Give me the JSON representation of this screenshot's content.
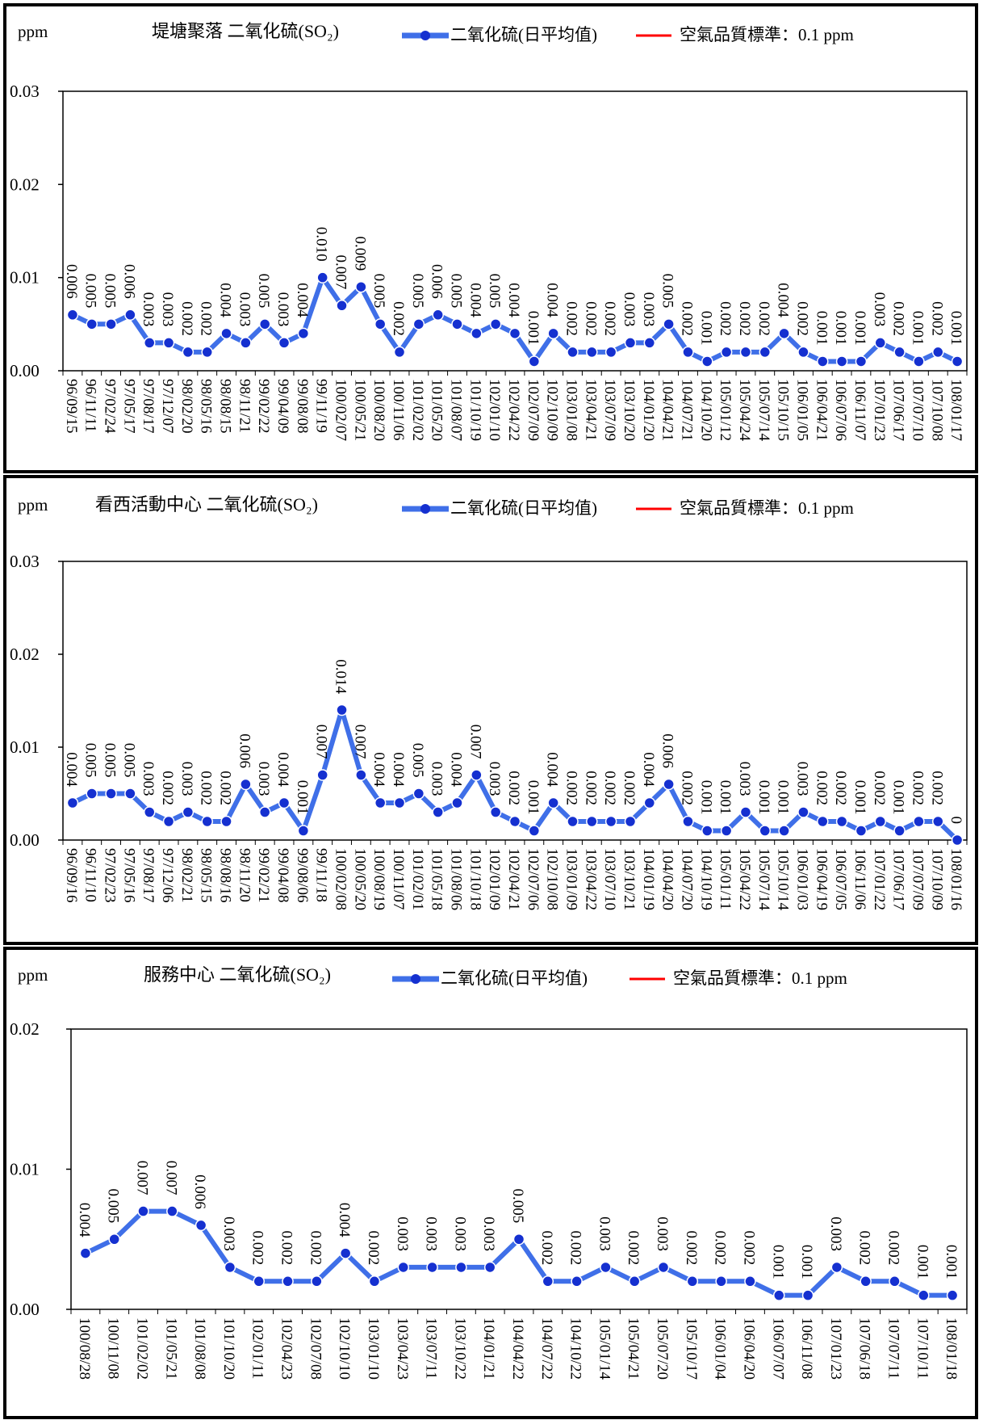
{
  "chart_data": [
    {
      "type": "line",
      "title": "堤塘聚落 二氧化硫(SO₂)",
      "ylabel": "ppm",
      "ylim": [
        0,
        0.03
      ],
      "yticks": [
        "0.00",
        "0.01",
        "0.02",
        "0.03"
      ],
      "ytick_values": [
        0,
        0.01,
        0.02,
        0.03
      ],
      "legend": {
        "series": "二氧化硫(日平均值)",
        "standard": "空氣品質標準：0.1 ppm",
        "placement": "top"
      },
      "categories": [
        "96/09/15",
        "96/11/11",
        "97/02/24",
        "97/05/17",
        "97/08/17",
        "97/12/07",
        "98/02/20",
        "98/05/16",
        "98/08/15",
        "98/11/21",
        "99/02/22",
        "99/04/09",
        "99/08/08",
        "99/11/19",
        "100/02/07",
        "100/05/21",
        "100/08/20",
        "100/11/06",
        "101/02/02",
        "101/05/20",
        "101/08/07",
        "101/10/19",
        "102/01/10",
        "102/04/22",
        "102/07/09",
        "102/10/09",
        "103/01/08",
        "103/04/21",
        "103/07/09",
        "103/10/20",
        "104/01/20",
        "104/04/21",
        "104/07/21",
        "104/10/20",
        "105/01/12",
        "105/04/24",
        "105/07/14",
        "105/10/15",
        "106/01/05",
        "106/04/21",
        "106/07/06",
        "106/11/07",
        "107/01/23",
        "107/06/17",
        "107/07/10",
        "107/10/08",
        "108/01/17"
      ],
      "labels": [
        "0.006",
        "0.005",
        "0.005",
        "0.006",
        "0.003",
        "0.003",
        "0.002",
        "0.002",
        "0.004",
        "0.003",
        "0.005",
        "0.003",
        "0.004",
        "0.010",
        "0.007",
        "0.009",
        "0.005",
        "0.002",
        "0.005",
        "0.006",
        "0.005",
        "0.004",
        "0.005",
        "0.004",
        "0.001",
        "0.004",
        "0.002",
        "0.002",
        "0.002",
        "0.003",
        "0.003",
        "0.005",
        "0.002",
        "0.001",
        "0.002",
        "0.002",
        "0.002",
        "0.004",
        "0.002",
        "0.001",
        "0.001",
        "0.001",
        "0.003",
        "0.002",
        "0.001",
        "0.002",
        "0.001"
      ],
      "values": [
        0.006,
        0.005,
        0.005,
        0.006,
        0.003,
        0.003,
        0.002,
        0.002,
        0.004,
        0.003,
        0.005,
        0.003,
        0.004,
        0.01,
        0.007,
        0.009,
        0.005,
        0.002,
        0.005,
        0.006,
        0.005,
        0.004,
        0.005,
        0.004,
        0.001,
        0.004,
        0.002,
        0.002,
        0.002,
        0.003,
        0.003,
        0.005,
        0.002,
        0.001,
        0.002,
        0.002,
        0.002,
        0.004,
        0.002,
        0.001,
        0.001,
        0.001,
        0.003,
        0.002,
        0.001,
        0.002,
        0.001
      ],
      "colors": {
        "series": "#3f6fe8",
        "marker": "#1530d0",
        "standard": "#ff0000"
      }
    },
    {
      "type": "line",
      "title": "看西活動中心 二氧化硫(SO₂)",
      "ylabel": "ppm",
      "ylim": [
        0,
        0.03
      ],
      "yticks": [
        "0.00",
        "0.01",
        "0.02",
        "0.03"
      ],
      "ytick_values": [
        0,
        0.01,
        0.02,
        0.03
      ],
      "legend": {
        "series": "二氧化硫(日平均值)",
        "standard": "空氣品質標準：0.1 ppm",
        "placement": "top"
      },
      "categories": [
        "96/09/16",
        "96/11/10",
        "97/02/23",
        "97/05/16",
        "97/08/17",
        "97/12/06",
        "98/02/21",
        "98/05/15",
        "98/08/16",
        "98/11/20",
        "99/02/21",
        "99/04/08",
        "99/08/06",
        "99/11/18",
        "100/02/08",
        "100/05/20",
        "100/08/19",
        "100/11/07",
        "101/02/01",
        "101/05/18",
        "101/08/06",
        "101/10/18",
        "102/01/09",
        "102/04/21",
        "102/07/06",
        "102/10/08",
        "103/01/09",
        "103/04/22",
        "103/07/10",
        "103/10/21",
        "104/01/19",
        "104/04/20",
        "104/07/20",
        "104/10/19",
        "105/01/11",
        "105/04/22",
        "105/07/14",
        "105/10/14",
        "106/01/03",
        "106/04/19",
        "106/07/05",
        "106/11/06",
        "107/01/22",
        "107/06/17",
        "107/07/09",
        "107/10/09",
        "108/01/16"
      ],
      "labels": [
        "0.004",
        "0.005",
        "0.005",
        "0.005",
        "0.003",
        "0.002",
        "0.003",
        "0.002",
        "0.002",
        "0.006",
        "0.003",
        "0.004",
        "0.001",
        "0.007",
        "0.014",
        "0.007",
        "0.004",
        "0.004",
        "0.005",
        "0.003",
        "0.004",
        "0.007",
        "0.003",
        "0.002",
        "0.001",
        "0.004",
        "0.002",
        "0.002",
        "0.002",
        "0.002",
        "0.004",
        "0.006",
        "0.002",
        "0.001",
        "0.001",
        "0.003",
        "0.001",
        "0.001",
        "0.003",
        "0.002",
        "0.002",
        "0.001",
        "0.002",
        "0.001",
        "0.002",
        "0.002",
        "0"
      ],
      "values": [
        0.004,
        0.005,
        0.005,
        0.005,
        0.003,
        0.002,
        0.003,
        0.002,
        0.002,
        0.006,
        0.003,
        0.004,
        0.001,
        0.007,
        0.014,
        0.007,
        0.004,
        0.004,
        0.005,
        0.003,
        0.004,
        0.007,
        0.003,
        0.002,
        0.001,
        0.004,
        0.002,
        0.002,
        0.002,
        0.002,
        0.004,
        0.006,
        0.002,
        0.001,
        0.001,
        0.003,
        0.001,
        0.001,
        0.003,
        0.002,
        0.002,
        0.001,
        0.002,
        0.001,
        0.002,
        0.002,
        0
      ],
      "colors": {
        "series": "#3f6fe8",
        "marker": "#1530d0",
        "standard": "#ff0000"
      }
    },
    {
      "type": "line",
      "title": "服務中心 二氧化硫(SO₂)",
      "ylabel": "ppm",
      "ylim": [
        0,
        0.02
      ],
      "yticks": [
        "0.00",
        "0.01",
        "0.02"
      ],
      "ytick_values": [
        0,
        0.01,
        0.02
      ],
      "legend": {
        "series": "二氧化硫(日平均值)",
        "standard": "空氣品質標準：0.1 ppm",
        "placement": "top"
      },
      "categories": [
        "100/08/28",
        "100/11/08",
        "101/02/02",
        "101/05/21",
        "101/08/08",
        "101/10/20",
        "102/01/11",
        "102/04/23",
        "102/07/08",
        "102/10/10",
        "103/01/10",
        "103/04/23",
        "103/07/11",
        "103/10/22",
        "104/01/21",
        "104/04/22",
        "104/07/22",
        "104/10/22",
        "105/01/14",
        "105/04/21",
        "105/07/20",
        "105/10/17",
        "106/01/04",
        "106/04/20",
        "106/07/07",
        "106/11/08",
        "107/01/23",
        "107/06/18",
        "107/07/11",
        "107/10/11",
        "108/01/18"
      ],
      "labels": [
        "0.004",
        "0.005",
        "0.007",
        "0.007",
        "0.006",
        "0.003",
        "0.002",
        "0.002",
        "0.002",
        "0.004",
        "0.002",
        "0.003",
        "0.003",
        "0.003",
        "0.003",
        "0.005",
        "0.002",
        "0.002",
        "0.003",
        "0.002",
        "0.003",
        "0.002",
        "0.002",
        "0.002",
        "0.001",
        "0.001",
        "0.003",
        "0.002",
        "0.002",
        "0.001",
        "0.001"
      ],
      "values": [
        0.004,
        0.005,
        0.007,
        0.007,
        0.006,
        0.003,
        0.002,
        0.002,
        0.002,
        0.004,
        0.002,
        0.003,
        0.003,
        0.003,
        0.003,
        0.005,
        0.002,
        0.002,
        0.003,
        0.002,
        0.003,
        0.002,
        0.002,
        0.002,
        0.001,
        0.001,
        0.003,
        0.002,
        0.002,
        0.001,
        0.001
      ],
      "colors": {
        "series": "#3f6fe8",
        "marker": "#1530d0",
        "standard": "#ff0000"
      }
    }
  ]
}
